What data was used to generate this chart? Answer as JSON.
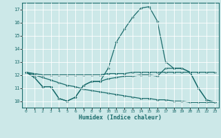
{
  "xlabel": "Humidex (Indice chaleur)",
  "xlim": [
    -0.5,
    23.5
  ],
  "ylim": [
    9.5,
    17.5
  ],
  "yticks": [
    10,
    11,
    12,
    13,
    14,
    15,
    16,
    17
  ],
  "xticks": [
    0,
    1,
    2,
    3,
    4,
    5,
    6,
    7,
    8,
    9,
    10,
    11,
    12,
    13,
    14,
    15,
    16,
    17,
    18,
    19,
    20,
    21,
    22,
    23
  ],
  "bg_color": "#cce8e8",
  "line_color": "#1a6b6b",
  "grid_color": "#ffffff",
  "lines": [
    {
      "x": [
        0,
        1,
        2,
        3,
        4,
        5,
        6,
        7,
        8,
        9,
        10,
        11,
        12,
        13,
        14,
        15,
        16,
        17,
        18,
        19,
        20,
        21,
        22,
        23
      ],
      "y": [
        12.2,
        11.8,
        11.1,
        11.1,
        10.2,
        10.0,
        10.3,
        11.2,
        11.5,
        11.5,
        12.5,
        14.5,
        15.5,
        16.4,
        17.1,
        17.2,
        16.1,
        13.0,
        12.5,
        12.5,
        12.2,
        11.0,
        10.1,
        9.9
      ]
    },
    {
      "x": [
        0,
        1,
        2,
        3,
        4,
        5,
        6,
        7,
        8,
        9,
        10,
        11,
        12,
        13,
        14,
        15,
        16,
        17,
        18,
        19,
        20,
        21,
        22,
        23
      ],
      "y": [
        12.2,
        12.1,
        12.0,
        12.0,
        12.0,
        12.0,
        12.0,
        12.0,
        12.0,
        12.0,
        12.1,
        12.1,
        12.1,
        12.2,
        12.2,
        12.2,
        12.2,
        12.2,
        12.2,
        12.2,
        12.2,
        12.2,
        12.2,
        12.2
      ]
    },
    {
      "x": [
        0,
        1,
        2,
        3,
        4,
        5,
        6,
        7,
        8,
        9,
        10,
        11,
        12,
        13,
        14,
        15,
        16,
        17,
        18,
        19,
        20,
        21,
        22,
        23
      ],
      "y": [
        12.2,
        12.0,
        11.8,
        11.6,
        11.4,
        11.2,
        11.1,
        10.9,
        10.8,
        10.7,
        10.6,
        10.5,
        10.4,
        10.3,
        10.2,
        10.2,
        10.1,
        10.1,
        10.0,
        10.0,
        9.9,
        9.9,
        9.9,
        9.9
      ]
    },
    {
      "x": [
        0,
        1,
        2,
        3,
        4,
        5,
        6,
        7,
        8,
        9,
        10,
        11,
        12,
        13,
        14,
        15,
        16,
        17,
        18,
        19,
        20,
        21,
        22,
        23
      ],
      "y": [
        12.2,
        11.8,
        11.1,
        11.1,
        10.2,
        10.0,
        10.3,
        11.2,
        11.5,
        11.5,
        11.7,
        11.8,
        11.9,
        11.9,
        12.0,
        12.0,
        11.9,
        12.5,
        12.5,
        12.5,
        12.2,
        11.0,
        10.1,
        9.9
      ]
    }
  ]
}
